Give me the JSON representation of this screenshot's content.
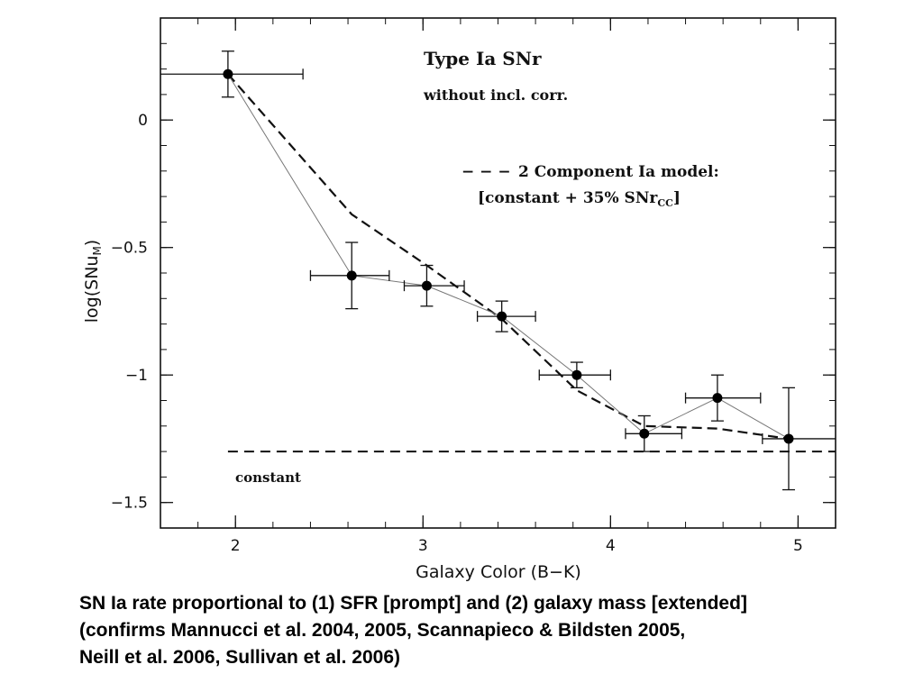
{
  "chart_data": {
    "type": "scatter",
    "title": "",
    "xlabel": "Galaxy Color (B−K)",
    "ylabel_main": "log(SNu",
    "ylabel_sub": "M",
    "ylabel_close": ")",
    "xlim": [
      1.6,
      5.2
    ],
    "ylim": [
      -1.6,
      0.4
    ],
    "x_ticks": [
      2,
      3,
      4,
      5
    ],
    "y_ticks": [
      0,
      -0.5,
      -1,
      -1.5
    ],
    "x_tick_labels": [
      "2",
      "3",
      "4",
      "5"
    ],
    "y_tick_labels": [
      "0",
      "−0.5",
      "−1",
      "−1.5"
    ],
    "grid": false,
    "series": [
      {
        "name": "",
        "style": "points-with-errorbars-thin-line",
        "x": [
          1.96,
          2.62,
          3.02,
          3.42,
          3.82,
          4.18,
          4.57,
          4.95
        ],
        "y": [
          0.18,
          -0.61,
          -0.65,
          -0.77,
          -1.0,
          -1.23,
          -1.09,
          -1.25
        ],
        "xerr_low": [
          0.4,
          0.22,
          0.12,
          0.13,
          0.2,
          0.1,
          0.17,
          0.14
        ],
        "xerr_high": [
          0.4,
          0.2,
          0.2,
          0.18,
          0.18,
          0.2,
          0.23,
          0.3
        ],
        "yerr_low": [
          0.09,
          0.13,
          0.08,
          0.06,
          0.05,
          0.07,
          0.09,
          0.2
        ],
        "yerr_high": [
          0.09,
          0.13,
          0.08,
          0.06,
          0.05,
          0.07,
          0.09,
          0.2
        ]
      },
      {
        "name": "2 Component Ia model:",
        "style": "dashed",
        "x": [
          1.96,
          2.62,
          3.02,
          3.42,
          3.82,
          4.18,
          4.57,
          4.95
        ],
        "y": [
          0.18,
          -0.37,
          -0.57,
          -0.78,
          -1.06,
          -1.2,
          -1.21,
          -1.25
        ]
      },
      {
        "name": "constant",
        "style": "dashed",
        "x": [
          1.96,
          5.2
        ],
        "y": [
          -1.3,
          -1.3
        ]
      }
    ],
    "annotations": {
      "panel_title": "Type Ia SNr",
      "panel_subtitle": "without incl. corr.",
      "legend_dash": "− − −",
      "legend_line1": "2 Component Ia model:",
      "legend_line2_main": "[constant + 35% SNr",
      "legend_line2_sub": "CC",
      "legend_line2_close": "]",
      "constant_label": "constant"
    }
  },
  "caption": {
    "line1": "SN Ia rate proportional to (1) SFR [prompt] and (2) galaxy mass [extended]",
    "line2": "(confirms Mannucci et al. 2004, 2005, Scannapieco & Bildsten 2005,",
    "line3": "Neill et al. 2006, Sullivan et al. 2006)"
  }
}
